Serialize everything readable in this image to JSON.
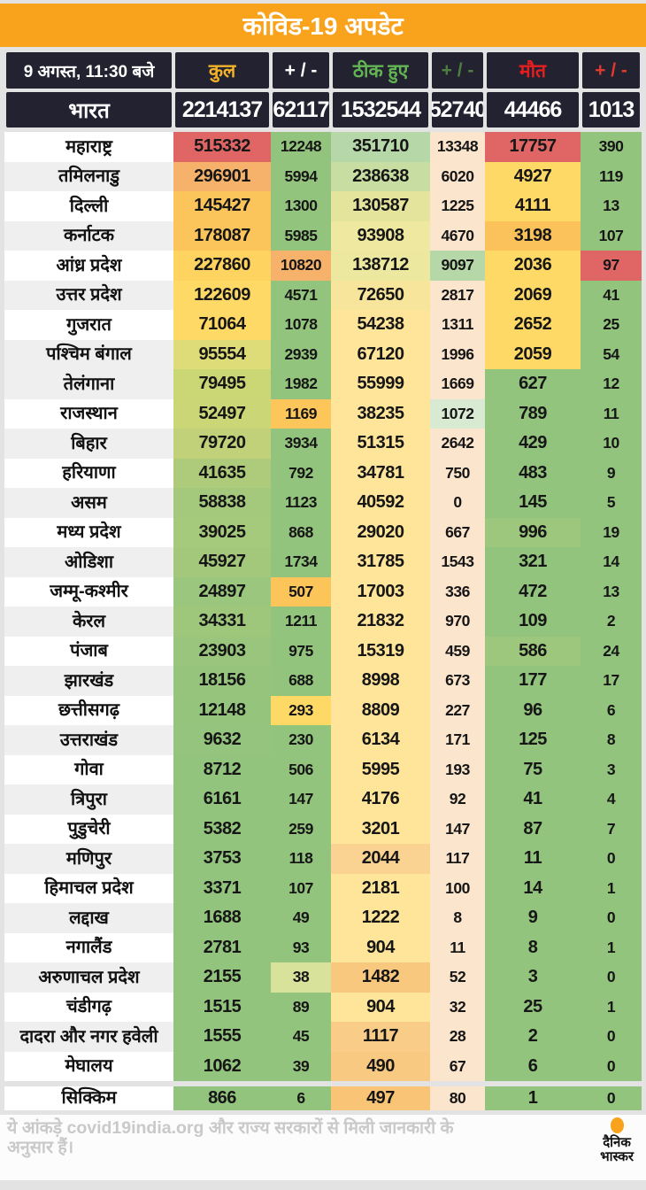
{
  "colors": {
    "title_bg": "#f9a21c",
    "header_box_bg": "#232230",
    "accent_orange": "#f9a21c",
    "red": "#e06666",
    "orange": "#f6b26b",
    "yellow": "#ffd966",
    "light_yellow": "#ffe599",
    "green": "#93c47d",
    "light_green": "#b6d7a8",
    "peach": "#fce5cd"
  },
  "chart_data": {
    "type": "table",
    "title": "कोविड-19 अपडेट",
    "updated": "9 अगस्त, 11:30 बजे",
    "columns": [
      {
        "label": "कुल",
        "color": "#f3b229"
      },
      {
        "label": "+ / -",
        "color": "#ffffff"
      },
      {
        "label": "ठीक हुए",
        "color": "#63b453"
      },
      {
        "label": "+ / -",
        "color": "#4e7f3f"
      },
      {
        "label": "मौत",
        "color": "#e41e20"
      },
      {
        "label": "+ / -",
        "color": "#e0392e"
      }
    ],
    "india": {
      "label": "भारत",
      "values": [
        "2214137",
        "62117",
        "1532544",
        "52740",
        "44466",
        "1013"
      ]
    },
    "rows": [
      {
        "state": "महाराष्ट्र",
        "values": [
          "515332",
          "12248",
          "351710",
          "13348",
          "17757",
          "390"
        ],
        "colors": [
          "#e06666",
          "#93c47d",
          "#b6d7a8",
          "#fce5cd",
          "#e06666",
          "#93c47d"
        ]
      },
      {
        "state": "तमिलनाडु",
        "values": [
          "296901",
          "5994",
          "238638",
          "6020",
          "4927",
          "119"
        ],
        "colors": [
          "#f6b26b",
          "#93c47d",
          "#c8dda2",
          "#fce5cd",
          "#ffd966",
          "#93c47d"
        ]
      },
      {
        "state": "दिल्ली",
        "values": [
          "145427",
          "1300",
          "130587",
          "1225",
          "4111",
          "13"
        ],
        "colors": [
          "#fbc55c",
          "#93c47d",
          "#e4e49d",
          "#fce5cd",
          "#ffd966",
          "#93c47d"
        ]
      },
      {
        "state": "कर्नाटक",
        "values": [
          "178087",
          "5985",
          "93908",
          "4670",
          "3198",
          "107"
        ],
        "colors": [
          "#fbc55c",
          "#93c47d",
          "#eee8a0",
          "#fce5cd",
          "#fbc25c",
          "#93c47d"
        ]
      },
      {
        "state": "आंध्र प्रदेश",
        "values": [
          "227860",
          "10820",
          "138712",
          "9097",
          "2036",
          "97"
        ],
        "colors": [
          "#ffd35f",
          "#f6b26b",
          "#ece89f",
          "#b6d7a8",
          "#ffd966",
          "#e06666"
        ]
      },
      {
        "state": "उत्तर प्रदेश",
        "values": [
          "122609",
          "4571",
          "72650",
          "2817",
          "2069",
          "41"
        ],
        "colors": [
          "#ffd966",
          "#93c47d",
          "#f7e59b",
          "#fce5cd",
          "#ffd966",
          "#93c47d"
        ]
      },
      {
        "state": "गुजरात",
        "values": [
          "71064",
          "1078",
          "54238",
          "1311",
          "2652",
          "25"
        ],
        "colors": [
          "#ffd966",
          "#93c47d",
          "#ffe599",
          "#fce5cd",
          "#ffd966",
          "#93c47d"
        ]
      },
      {
        "state": "पश्चिम बंगाल",
        "values": [
          "95554",
          "2939",
          "67120",
          "1996",
          "2059",
          "54"
        ],
        "colors": [
          "#dedc78",
          "#93c47d",
          "#ffe599",
          "#fce5cd",
          "#ffd966",
          "#93c47d"
        ]
      },
      {
        "state": "तेलंगाना",
        "values": [
          "79495",
          "1982",
          "55999",
          "1669",
          "627",
          "12"
        ],
        "colors": [
          "#cbd675",
          "#93c47d",
          "#ffe599",
          "#fce5cd",
          "#93c47d",
          "#93c47d"
        ]
      },
      {
        "state": "राजस्थान",
        "values": [
          "52497",
          "1169",
          "38235",
          "1072",
          "789",
          "11"
        ],
        "colors": [
          "#cbd677",
          "#fcc65a",
          "#ffe599",
          "#d9ead3",
          "#93c47d",
          "#93c47d"
        ]
      },
      {
        "state": "बिहार",
        "values": [
          "79720",
          "3934",
          "51315",
          "2642",
          "429",
          "10"
        ],
        "colors": [
          "#c0d17a",
          "#93c47d",
          "#ffe599",
          "#fce5cd",
          "#93c47d",
          "#93c47d"
        ]
      },
      {
        "state": "हरियाणा",
        "values": [
          "41635",
          "792",
          "34781",
          "750",
          "483",
          "9"
        ],
        "colors": [
          "#aecb7b",
          "#93c47d",
          "#ffe599",
          "#fce5cd",
          "#93c47d",
          "#93c47d"
        ]
      },
      {
        "state": "असम",
        "values": [
          "58838",
          "1123",
          "40592",
          "0",
          "145",
          "5"
        ],
        "colors": [
          "#a4c97c",
          "#93c47d",
          "#ffe599",
          "#fce5cd",
          "#93c47d",
          "#93c47d"
        ]
      },
      {
        "state": "मध्य प्रदेश",
        "values": [
          "39025",
          "868",
          "29020",
          "667",
          "996",
          "19"
        ],
        "colors": [
          "#a6ca7c",
          "#93c47d",
          "#ffe599",
          "#fce5cd",
          "#9cc77c",
          "#93c47d"
        ]
      },
      {
        "state": "ओडिशा",
        "values": [
          "45927",
          "1734",
          "31785",
          "1543",
          "321",
          "14"
        ],
        "colors": [
          "#a3c87b",
          "#93c47d",
          "#ffe599",
          "#fce5cd",
          "#93c47d",
          "#93c47d"
        ]
      },
      {
        "state": "जम्मू-कश्मीर",
        "values": [
          "24897",
          "507",
          "17003",
          "336",
          "472",
          "13"
        ],
        "colors": [
          "#9ac67d",
          "#fcc55a",
          "#ffe599",
          "#fce5cd",
          "#93c47d",
          "#93c47d"
        ]
      },
      {
        "state": "केरल",
        "values": [
          "34331",
          "1211",
          "21832",
          "970",
          "109",
          "2"
        ],
        "colors": [
          "#9ec77c",
          "#93c47d",
          "#ffe599",
          "#fce5cd",
          "#93c47d",
          "#93c47d"
        ]
      },
      {
        "state": "पंजाब",
        "values": [
          "23903",
          "975",
          "15319",
          "459",
          "586",
          "24"
        ],
        "colors": [
          "#99c57d",
          "#93c47d",
          "#ffe599",
          "#fce5cd",
          "#9cc77c",
          "#93c47d"
        ]
      },
      {
        "state": "झारखंड",
        "values": [
          "18156",
          "688",
          "8998",
          "673",
          "177",
          "17"
        ],
        "colors": [
          "#96c47d",
          "#93c47d",
          "#ffe599",
          "#fce5cd",
          "#93c47d",
          "#93c47d"
        ]
      },
      {
        "state": "छत्तीसगढ़",
        "values": [
          "12148",
          "293",
          "8809",
          "227",
          "96",
          "6"
        ],
        "colors": [
          "#95c47d",
          "#ffd966",
          "#ffe599",
          "#fce5cd",
          "#93c47d",
          "#93c47d"
        ]
      },
      {
        "state": "उत्तराखंड",
        "values": [
          "9632",
          "230",
          "6134",
          "171",
          "125",
          "8"
        ],
        "colors": [
          "#94c47d",
          "#93c47d",
          "#ffe599",
          "#fce5cd",
          "#93c47d",
          "#93c47d"
        ]
      },
      {
        "state": "गोवा",
        "values": [
          "8712",
          "506",
          "5995",
          "193",
          "75",
          "3"
        ],
        "colors": [
          "#93c47d",
          "#93c47d",
          "#ffe599",
          "#fce5cd",
          "#93c47d",
          "#93c47d"
        ]
      },
      {
        "state": "त्रिपुरा",
        "values": [
          "6161",
          "147",
          "4176",
          "92",
          "41",
          "4"
        ],
        "colors": [
          "#93c47d",
          "#93c47d",
          "#ffe599",
          "#fce5cd",
          "#93c47d",
          "#93c47d"
        ]
      },
      {
        "state": "पुडुचेरी",
        "values": [
          "5382",
          "259",
          "3201",
          "147",
          "87",
          "7"
        ],
        "colors": [
          "#93c47d",
          "#93c47d",
          "#ffe599",
          "#fce5cd",
          "#93c47d",
          "#93c47d"
        ]
      },
      {
        "state": "मणिपुर",
        "values": [
          "3753",
          "118",
          "2044",
          "117",
          "11",
          "0"
        ],
        "colors": [
          "#93c47d",
          "#93c47d",
          "#fad292",
          "#fce5cd",
          "#93c47d",
          "#93c47d"
        ]
      },
      {
        "state": "हिमाचल प्रदेश",
        "values": [
          "3371",
          "107",
          "2181",
          "100",
          "14",
          "1"
        ],
        "colors": [
          "#93c47d",
          "#93c47d",
          "#ffe599",
          "#fce5cd",
          "#93c47d",
          "#93c47d"
        ]
      },
      {
        "state": "लद्दाख",
        "values": [
          "1688",
          "49",
          "1222",
          "8",
          "9",
          "0"
        ],
        "colors": [
          "#93c47d",
          "#93c47d",
          "#ffe599",
          "#fce5cd",
          "#93c47d",
          "#93c47d"
        ]
      },
      {
        "state": "नगालैंड",
        "values": [
          "2781",
          "93",
          "904",
          "11",
          "8",
          "1"
        ],
        "colors": [
          "#93c47d",
          "#93c47d",
          "#ffe599",
          "#fce5cd",
          "#93c47d",
          "#93c47d"
        ]
      },
      {
        "state": "अरुणाचल प्रदेश",
        "values": [
          "2155",
          "38",
          "1482",
          "52",
          "3",
          "0"
        ],
        "colors": [
          "#93c47d",
          "#d8e29b",
          "#f9c87f",
          "#fce5cd",
          "#93c47d",
          "#93c47d"
        ]
      },
      {
        "state": "चंडीगढ़",
        "values": [
          "1515",
          "89",
          "904",
          "32",
          "25",
          "1"
        ],
        "colors": [
          "#93c47d",
          "#93c47d",
          "#ffe599",
          "#fce5cd",
          "#93c47d",
          "#93c47d"
        ]
      },
      {
        "state": "दादरा और नगर हवेली",
        "values": [
          "1555",
          "45",
          "1117",
          "28",
          "2",
          "0"
        ],
        "colors": [
          "#93c47d",
          "#93c47d",
          "#f9cc88",
          "#fce5cd",
          "#93c47d",
          "#93c47d"
        ]
      },
      {
        "state": "मेघालय",
        "values": [
          "1062",
          "39",
          "490",
          "67",
          "6",
          "0"
        ],
        "colors": [
          "#93c47d",
          "#93c47d",
          "#f8c981",
          "#fce5cd",
          "#93c47d",
          "#93c47d"
        ]
      },
      {
        "state": "सिक्किम",
        "values": [
          "866",
          "6",
          "497",
          "80",
          "1",
          "0"
        ],
        "colors": [
          "#93c47d",
          "#93c47d",
          "#f9c476",
          "#fce5cd",
          "#93c47d",
          "#93c47d"
        ],
        "separated": true
      }
    ]
  },
  "footer": {
    "note": "ये आंकड़े covid19india.org और राज्य सरकारों से मिली जानकारी के अनुसार हैं।",
    "logo_line1": "दैनिक",
    "logo_line2": "भास्कर"
  }
}
